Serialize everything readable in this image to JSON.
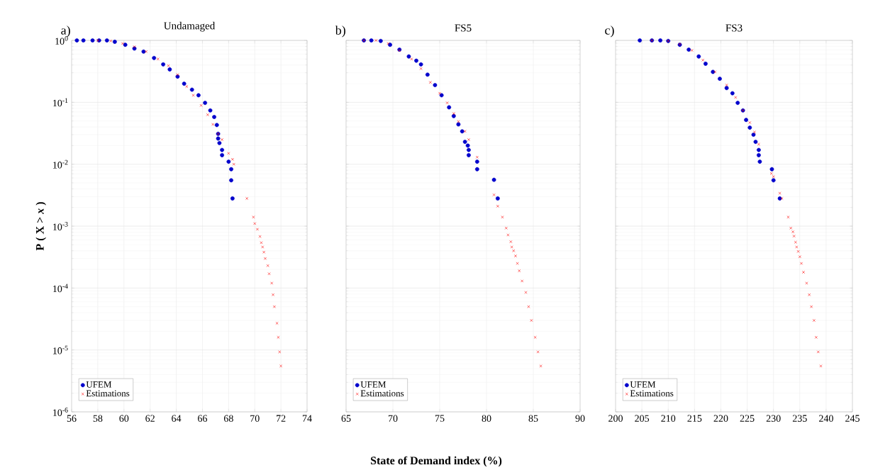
{
  "chart_data": [
    {
      "type": "scatter",
      "title": "Undamaged",
      "annotations": [
        "a)"
      ],
      "ylabel": "P ( X > *x* )",
      "xlim": [
        56,
        74
      ],
      "xticks": [
        56,
        58,
        60,
        62,
        64,
        66,
        68,
        70,
        72,
        74
      ],
      "ylim": [
        1e-06,
        1
      ],
      "yticks": [
        {
          "value": 1e-06,
          "label": "10$^{-6}$"
        },
        {
          "value": 1e-05,
          "label": "10$^{-5}$"
        },
        {
          "value": 0.0001,
          "label": "10$^{-4}$"
        },
        {
          "value": 0.001,
          "label": "10$^{-3}$"
        },
        {
          "value": 0.01,
          "label": "10$^{-2}$"
        },
        {
          "value": 0.1,
          "label": "10$^{-1}$"
        },
        {
          "value": 1,
          "label": "10$^{0}$"
        }
      ],
      "log": "y",
      "grid": true,
      "legend": "bottom left",
      "series": [
        {
          "name": "UFEM",
          "color": "#0000cc",
          "marker": "circle",
          "x": [
            56.4,
            56.9,
            57.6,
            58.1,
            58.7,
            59.3,
            60.1,
            60.8,
            61.5,
            62.3,
            63.0,
            63.5,
            64.1,
            64.6,
            65.2,
            65.7,
            66.2,
            66.6,
            66.9,
            67.1,
            67.2,
            67.2,
            67.3,
            67.5,
            67.5,
            68.0,
            68.2,
            68.2,
            68.3
          ],
          "values": [
            1,
            1,
            1,
            1,
            1,
            0.95,
            0.85,
            0.74,
            0.66,
            0.52,
            0.41,
            0.34,
            0.26,
            0.2,
            0.16,
            0.13,
            0.098,
            0.074,
            0.058,
            0.043,
            0.031,
            0.026,
            0.022,
            0.017,
            0.014,
            0.011,
            0.0083,
            0.0055,
            0.0028
          ]
        },
        {
          "name": "Estimations",
          "color": "#ff0000",
          "marker": "cross",
          "x": [
            58.0,
            59.0,
            59.9,
            60.8,
            61.7,
            62.6,
            63.4,
            64.1,
            64.8,
            65.3,
            65.9,
            66.4,
            66.8,
            67.2,
            67.5,
            68.0,
            68.3,
            68.4,
            69.4,
            69.9,
            70.0,
            70.2,
            70.4,
            70.5,
            70.6,
            70.7,
            70.8,
            71.0,
            71.1,
            71.3,
            71.4,
            71.5,
            71.7,
            71.8,
            71.9,
            72.0
          ],
          "values": [
            1,
            0.98,
            0.89,
            0.79,
            0.66,
            0.5,
            0.39,
            0.28,
            0.18,
            0.13,
            0.089,
            0.063,
            0.044,
            0.031,
            0.025,
            0.015,
            0.012,
            0.01,
            0.0028,
            0.0014,
            0.0011,
            0.00089,
            0.00068,
            0.00054,
            0.00046,
            0.00038,
            0.0003,
            0.00023,
            0.00017,
            0.00012,
            7.8e-05,
            5e-05,
            2.7e-05,
            1.6e-05,
            9.3e-06,
            5.5e-06
          ]
        }
      ]
    },
    {
      "type": "scatter",
      "title": "FS5",
      "annotations": [
        "b)"
      ],
      "xlabel": "State of Demand index (%)",
      "xlim": [
        65,
        90
      ],
      "xticks": [
        65,
        70,
        75,
        80,
        85,
        90
      ],
      "ylim": [
        1e-06,
        1
      ],
      "yticks": [
        1e-06,
        1e-05,
        0.0001,
        0.001,
        0.01,
        0.1,
        1
      ],
      "log": "y",
      "grid": true,
      "legend": "bottom left",
      "tick_labels": "x",
      "series": [
        {
          "name": "UFEM",
          "color": "#0000cc",
          "marker": "circle",
          "x": [
            66.9,
            67.7,
            68.7,
            69.7,
            70.7,
            71.7,
            72.5,
            73.0,
            73.7,
            74.5,
            75.2,
            76.0,
            76.5,
            77.0,
            77.4,
            77.7,
            78.0,
            78.1,
            78.1,
            79.0,
            79.0,
            80.8,
            81.2
          ],
          "values": [
            1,
            1,
            0.98,
            0.85,
            0.71,
            0.55,
            0.47,
            0.41,
            0.28,
            0.19,
            0.13,
            0.083,
            0.06,
            0.044,
            0.034,
            0.023,
            0.02,
            0.017,
            0.014,
            0.011,
            0.0083,
            0.0056,
            0.0028
          ]
        },
        {
          "name": "Estimations",
          "color": "#ff0000",
          "marker": "cross",
          "x": [
            66.9,
            68.2,
            69.5,
            70.7,
            72.0,
            73.0,
            74.0,
            75.0,
            75.8,
            76.5,
            77.0,
            77.7,
            78.1,
            79.0,
            80.8,
            81.2,
            81.7,
            82.1,
            82.3,
            82.6,
            82.7,
            82.9,
            83.1,
            83.3,
            83.5,
            83.8,
            84.2,
            84.5,
            84.8,
            85.2,
            85.5,
            85.8
          ],
          "values": [
            1,
            1,
            0.89,
            0.69,
            0.5,
            0.35,
            0.21,
            0.14,
            0.098,
            0.066,
            0.049,
            0.034,
            0.025,
            0.013,
            0.0032,
            0.0021,
            0.0014,
            0.00093,
            0.00072,
            0.00056,
            0.00046,
            0.0004,
            0.00033,
            0.00025,
            0.00019,
            0.00013,
            8.5e-05,
            5e-05,
            3e-05,
            1.6e-05,
            9.3e-06,
            5.5e-06
          ]
        }
      ]
    },
    {
      "type": "scatter",
      "title": "FS3",
      "annotations": [
        "c)"
      ],
      "xlim": [
        200,
        245
      ],
      "xticks": [
        200,
        205,
        210,
        215,
        220,
        225,
        230,
        235,
        240,
        245
      ],
      "ylim": [
        1e-06,
        1
      ],
      "yticks": [
        1e-06,
        1e-05,
        0.0001,
        0.001,
        0.01,
        0.1,
        1
      ],
      "log": "y",
      "grid": true,
      "legend": "bottom left",
      "tick_labels": "x",
      "series": [
        {
          "name": "UFEM",
          "color": "#0000cc",
          "marker": "circle",
          "x": [
            204.6,
            206.9,
            208.5,
            210.0,
            212.2,
            213.9,
            215.8,
            217.1,
            218.5,
            219.8,
            221.1,
            222.2,
            223.2,
            224.2,
            224.8,
            225.5,
            226.2,
            226.6,
            227.2,
            227.2,
            227.4,
            229.7,
            230.0,
            231.2
          ],
          "values": [
            1,
            1,
            1,
            0.98,
            0.85,
            0.71,
            0.55,
            0.42,
            0.31,
            0.24,
            0.17,
            0.14,
            0.098,
            0.074,
            0.052,
            0.039,
            0.03,
            0.023,
            0.017,
            0.014,
            0.011,
            0.0083,
            0.0055,
            0.0028
          ]
        },
        {
          "name": "Estimations",
          "color": "#ff0000",
          "marker": "cross",
          "x": [
            206.9,
            210.0,
            212.2,
            214.5,
            216.6,
            218.9,
            221.1,
            222.8,
            224.2,
            225.5,
            226.4,
            227.2,
            229.6,
            230.0,
            231.2,
            231.6,
            232.8,
            233.3,
            233.7,
            233.9,
            234.2,
            234.4,
            234.7,
            235.0,
            235.3,
            235.7,
            236.3,
            236.8,
            237.2,
            237.7,
            238.1,
            238.5,
            239.0
          ],
          "values": [
            1,
            0.98,
            0.87,
            0.69,
            0.48,
            0.31,
            0.19,
            0.12,
            0.074,
            0.047,
            0.033,
            0.021,
            0.0071,
            0.0063,
            0.0034,
            0.0028,
            0.0014,
            0.00093,
            0.00081,
            0.00069,
            0.00055,
            0.00046,
            0.00039,
            0.00032,
            0.00025,
            0.00018,
            0.00012,
            7.8e-05,
            5e-05,
            3e-05,
            1.6e-05,
            9.3e-06,
            5.5e-06
          ]
        }
      ]
    }
  ]
}
